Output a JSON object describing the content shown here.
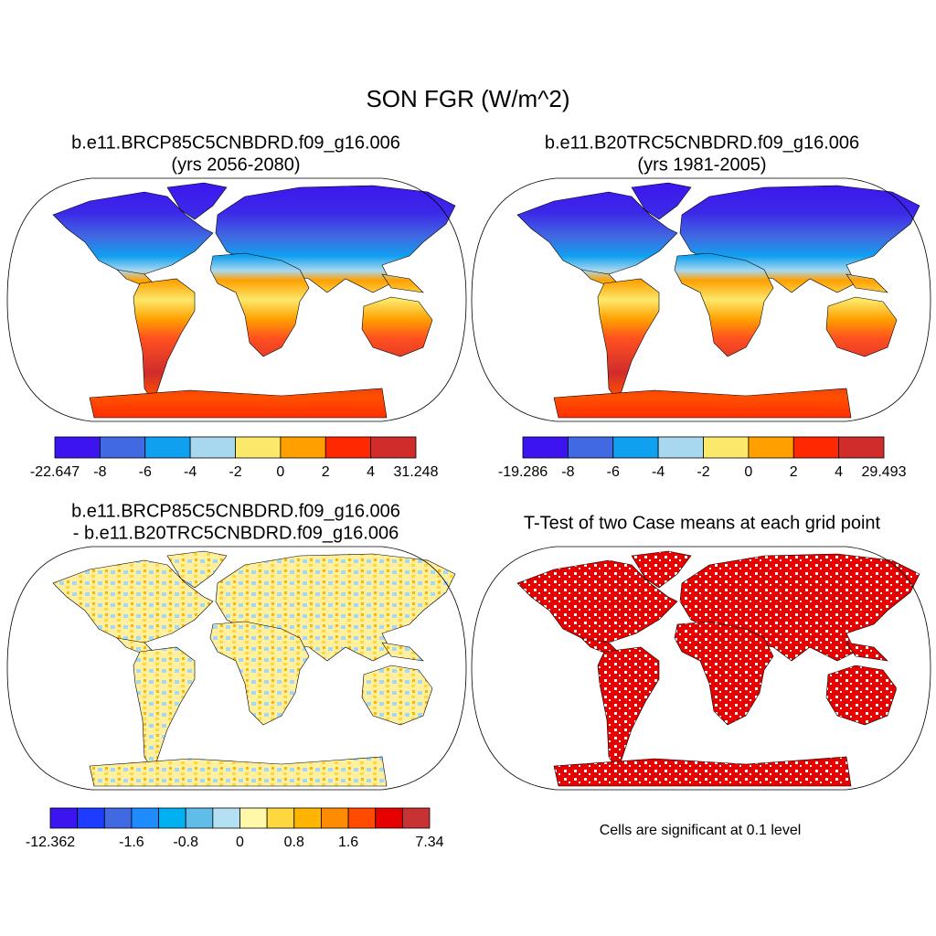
{
  "title": "SON FGR (W/m^2)",
  "panels": [
    {
      "title_lines": [
        "b.e11.BRCP85C5CNBDRD.f09_g16.006",
        "(yrs 2056-2080)"
      ],
      "colorbar": {
        "colors": [
          "#3c14f0",
          "#4169e1",
          "#10a0f0",
          "#a8d8f0",
          "#fce86a",
          "#ffa000",
          "#ff2800",
          "#d02c2c"
        ],
        "labels": [
          "-22.647",
          "-8",
          "-6",
          "-4",
          "-2",
          "0",
          "2",
          "4",
          "31.248"
        ]
      }
    },
    {
      "title_lines": [
        "b.e11.B20TRC5CNBDRD.f09_g16.006",
        "(yrs 1981-2005)"
      ],
      "colorbar": {
        "colors": [
          "#3c14f0",
          "#4169e1",
          "#10a0f0",
          "#a8d8f0",
          "#fce86a",
          "#ffa000",
          "#ff2800",
          "#d02c2c"
        ],
        "labels": [
          "-19.286",
          "-8",
          "-6",
          "-4",
          "-2",
          "0",
          "2",
          "4",
          "29.493"
        ]
      }
    },
    {
      "title_lines": [
        "b.e11.BRCP85C5CNBDRD.f09_g16.006",
        "- b.e11.B20TRC5CNBDRD.f09_g16.006"
      ],
      "colorbar": {
        "colors": [
          "#3c14f0",
          "#1e3cff",
          "#4169e1",
          "#1e8cff",
          "#00b0f0",
          "#60bce8",
          "#b4e0f4",
          "#fff8a8",
          "#ffd840",
          "#ffb400",
          "#ff8c00",
          "#ff4a00",
          "#e60000",
          "#c83232"
        ],
        "labels": [
          "-12.362",
          null,
          null,
          "-1.6",
          null,
          "-0.8",
          null,
          "0",
          null,
          "0.8",
          null,
          "1.6",
          null,
          null,
          "7.34"
        ]
      }
    },
    {
      "title_lines": [
        "T-Test of two Case means at each grid point"
      ],
      "note": "Cells are significant at 0.1 level"
    }
  ]
}
